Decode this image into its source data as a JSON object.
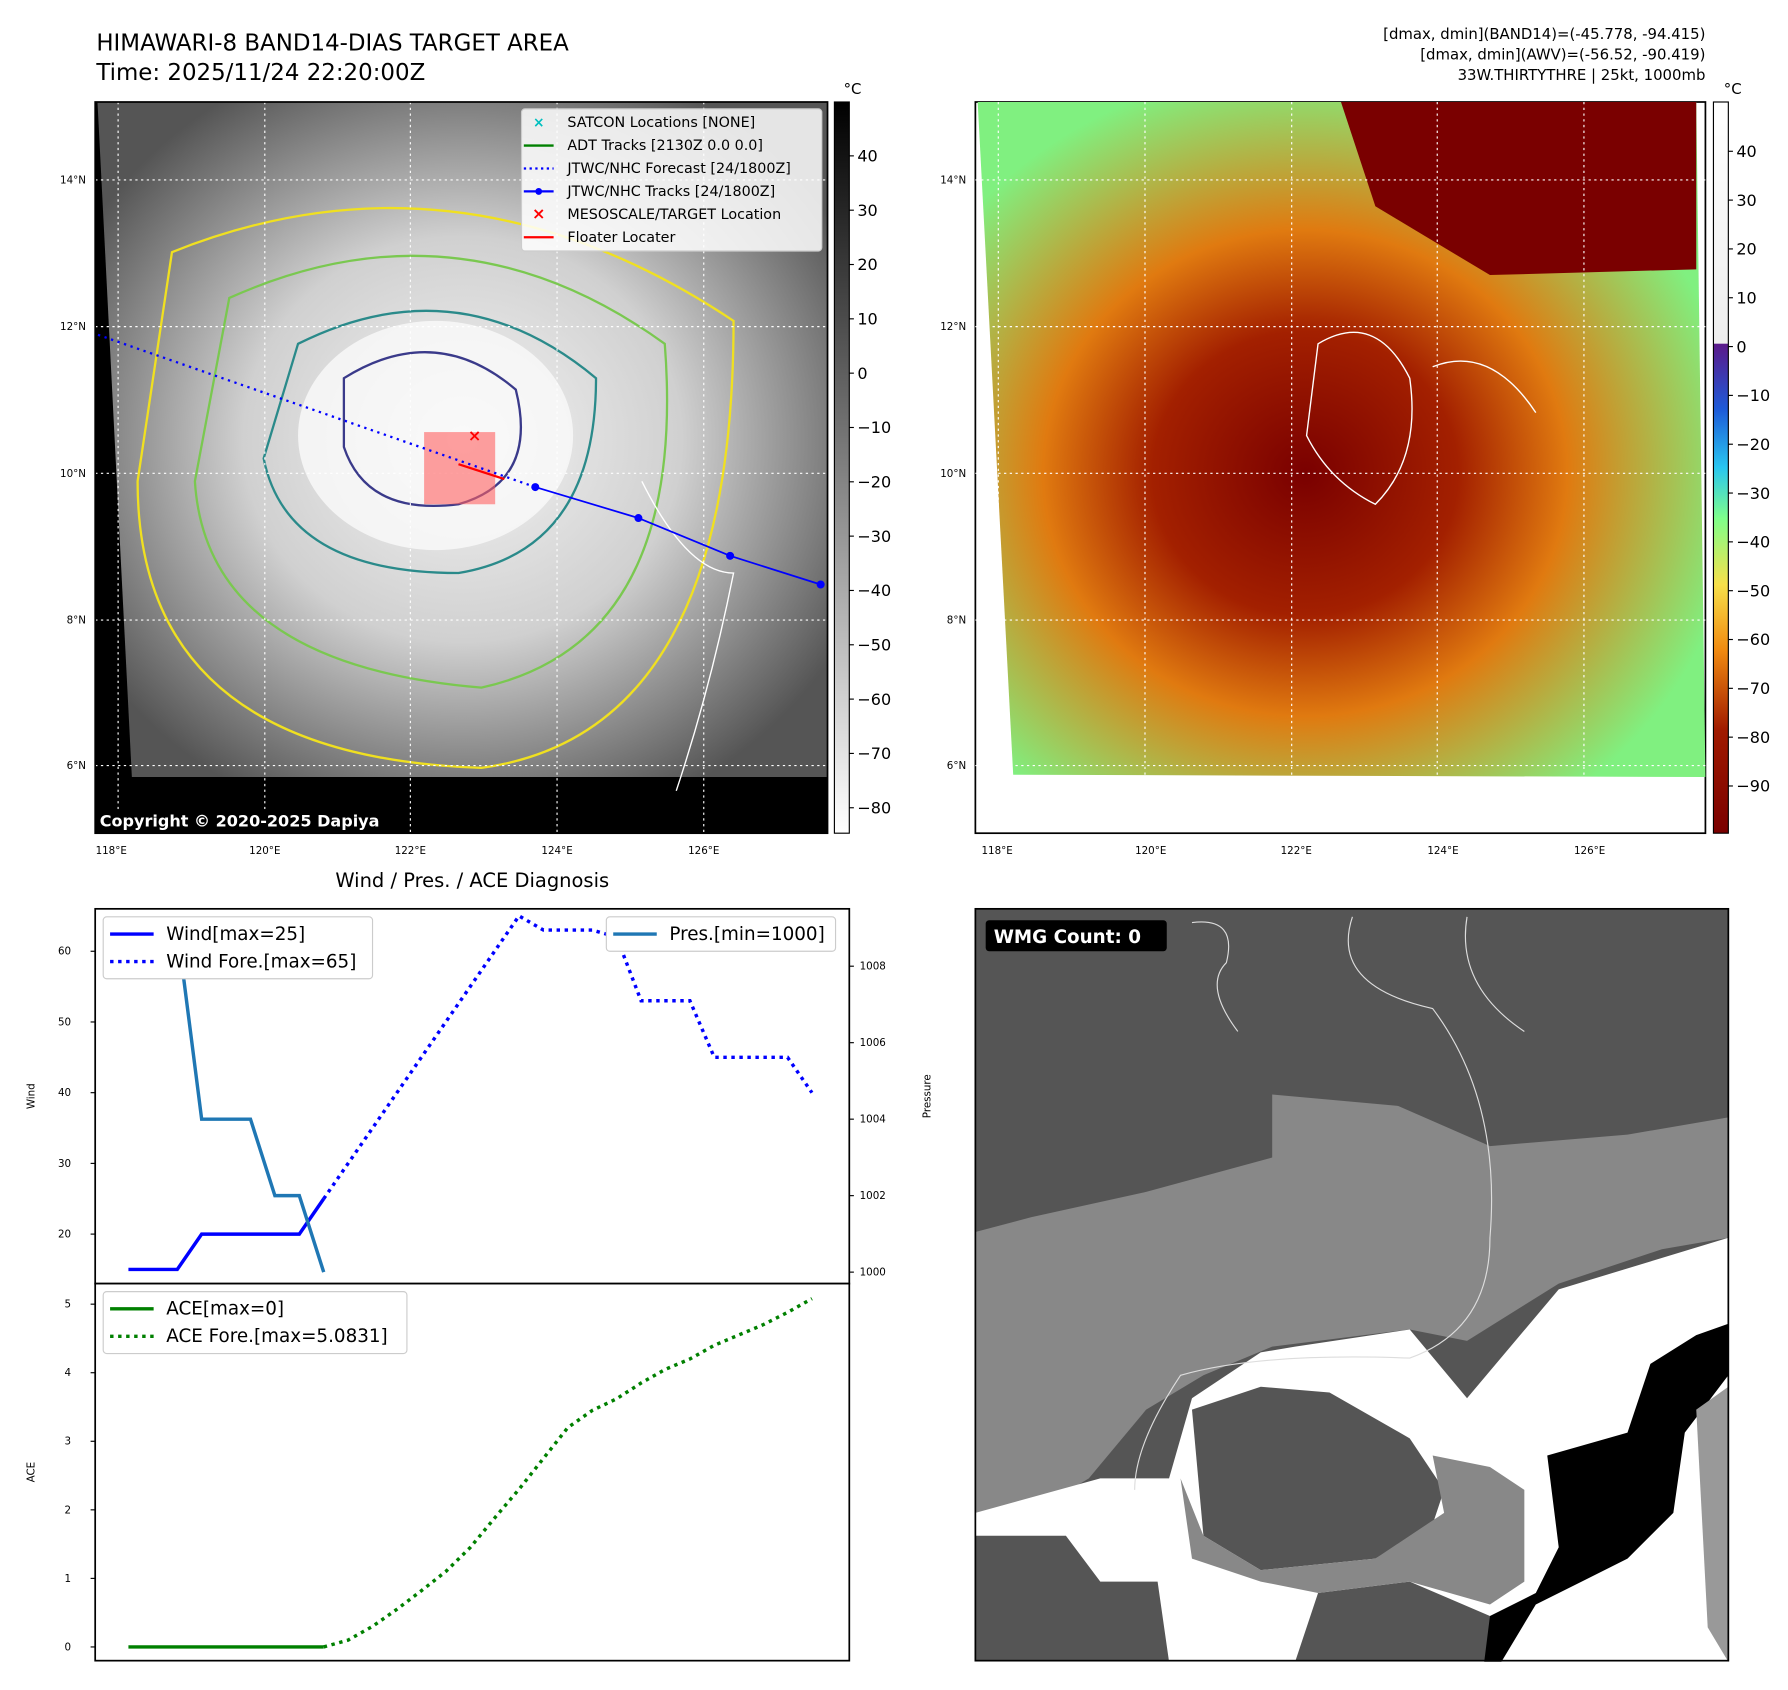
{
  "header": {
    "title": "HIMAWARI-8 BAND14-DIAS TARGET AREA",
    "time": "Time: 2025/11/24 22:20:00Z",
    "stats_band14": "[dmax, dmin](BAND14)=(-45.778, -94.415)",
    "stats_awv": "[dmax, dmin](AWV)=(-56.52, -90.419)",
    "storm": "33W.THIRTYTHRE | 25kt, 1000mb"
  },
  "map": {
    "lat_labels": [
      "14°N",
      "12°N",
      "10°N",
      "8°N",
      "6°N"
    ],
    "lon_labels": [
      "118°E",
      "120°E",
      "122°E",
      "124°E",
      "126°E"
    ],
    "unit": "°C",
    "copyright": "Copyright © 2020-2025 Dapiya",
    "legend": [
      "SATCON Locations [NONE]",
      "ADT Tracks [2130Z 0.0 0.0]",
      "JTWC/NHC Forecast [24/1800Z]",
      "JTWC/NHC Tracks [24/1800Z]",
      "MESOSCALE/TARGET Location",
      "Floater Locater"
    ],
    "left_cbar_ticks": [
      "40",
      "30",
      "20",
      "10",
      "0",
      "−10",
      "−20",
      "−30",
      "−40",
      "−50",
      "−60",
      "−70",
      "−80"
    ],
    "right_cbar_ticks": [
      "40",
      "30",
      "20",
      "10",
      "0",
      "−10",
      "−20",
      "−30",
      "−40",
      "−50",
      "−60",
      "−70",
      "−80",
      "−90"
    ],
    "colors": {
      "track": "#0000ff",
      "adt": "#008000",
      "target": "#ff0000",
      "satcon": "#00bfbf"
    }
  },
  "wmg": {
    "label": "WMG Count: 0"
  },
  "chart_data": [
    {
      "type": "line",
      "title": "Wind / Pres. / ACE Diagnosis",
      "ylabel": "Wind",
      "y2label": "Pressure",
      "ylim": [
        13,
        66
      ],
      "y2lim": [
        999.7,
        1009.5
      ],
      "yticks": [
        20,
        30,
        40,
        50,
        60
      ],
      "y2ticks": [
        1000,
        1002,
        1004,
        1006,
        1008
      ],
      "series": [
        {
          "name": "Wind[max=25]",
          "x": [
            0,
            1,
            2,
            3,
            4,
            5,
            6,
            7,
            8
          ],
          "values": [
            15,
            15,
            15,
            20,
            20,
            20,
            20,
            20,
            25
          ],
          "color": "#0000ff",
          "style": "solid"
        },
        {
          "name": "Wind Fore.[max=65]",
          "x": [
            8,
            9,
            10,
            11,
            12,
            13,
            14,
            15,
            16,
            17,
            18,
            19,
            20,
            21,
            22,
            23,
            24,
            25,
            26,
            27,
            28
          ],
          "values": [
            25,
            30,
            35,
            40,
            45,
            50,
            55,
            60,
            65,
            63,
            63,
            63,
            62,
            53,
            53,
            53,
            45,
            45,
            45,
            45,
            40
          ],
          "color": "#0000ff",
          "style": "dotted"
        },
        {
          "name": "Pres.[min=1000]",
          "axis": "right",
          "x": [
            1,
            2,
            3,
            4,
            5,
            6,
            7,
            8
          ],
          "values": [
            1009,
            1009,
            1004,
            1004,
            1004,
            1002,
            1002,
            1000
          ],
          "color": "#1f77b4",
          "style": "solid"
        }
      ]
    },
    {
      "type": "line",
      "ylabel": "ACE",
      "ylim": [
        -0.2,
        5.3
      ],
      "yticks": [
        0,
        1,
        2,
        3,
        4,
        5
      ],
      "series": [
        {
          "name": "ACE[max=0]",
          "x": [
            0,
            8
          ],
          "values": [
            0,
            0
          ],
          "color": "#008000",
          "style": "solid"
        },
        {
          "name": "ACE Fore.[max=5.0831]",
          "x": [
            8,
            9,
            10,
            11,
            12,
            13,
            14,
            15,
            16,
            17,
            18,
            19,
            20,
            21,
            22,
            23,
            24,
            25,
            26,
            27,
            28
          ],
          "values": [
            0,
            0.1,
            0.3,
            0.55,
            0.82,
            1.1,
            1.45,
            1.88,
            2.3,
            2.75,
            3.2,
            3.45,
            3.62,
            3.85,
            4.05,
            4.2,
            4.4,
            4.55,
            4.7,
            4.88,
            5.08
          ],
          "color": "#008000",
          "style": "dotted"
        }
      ]
    }
  ]
}
